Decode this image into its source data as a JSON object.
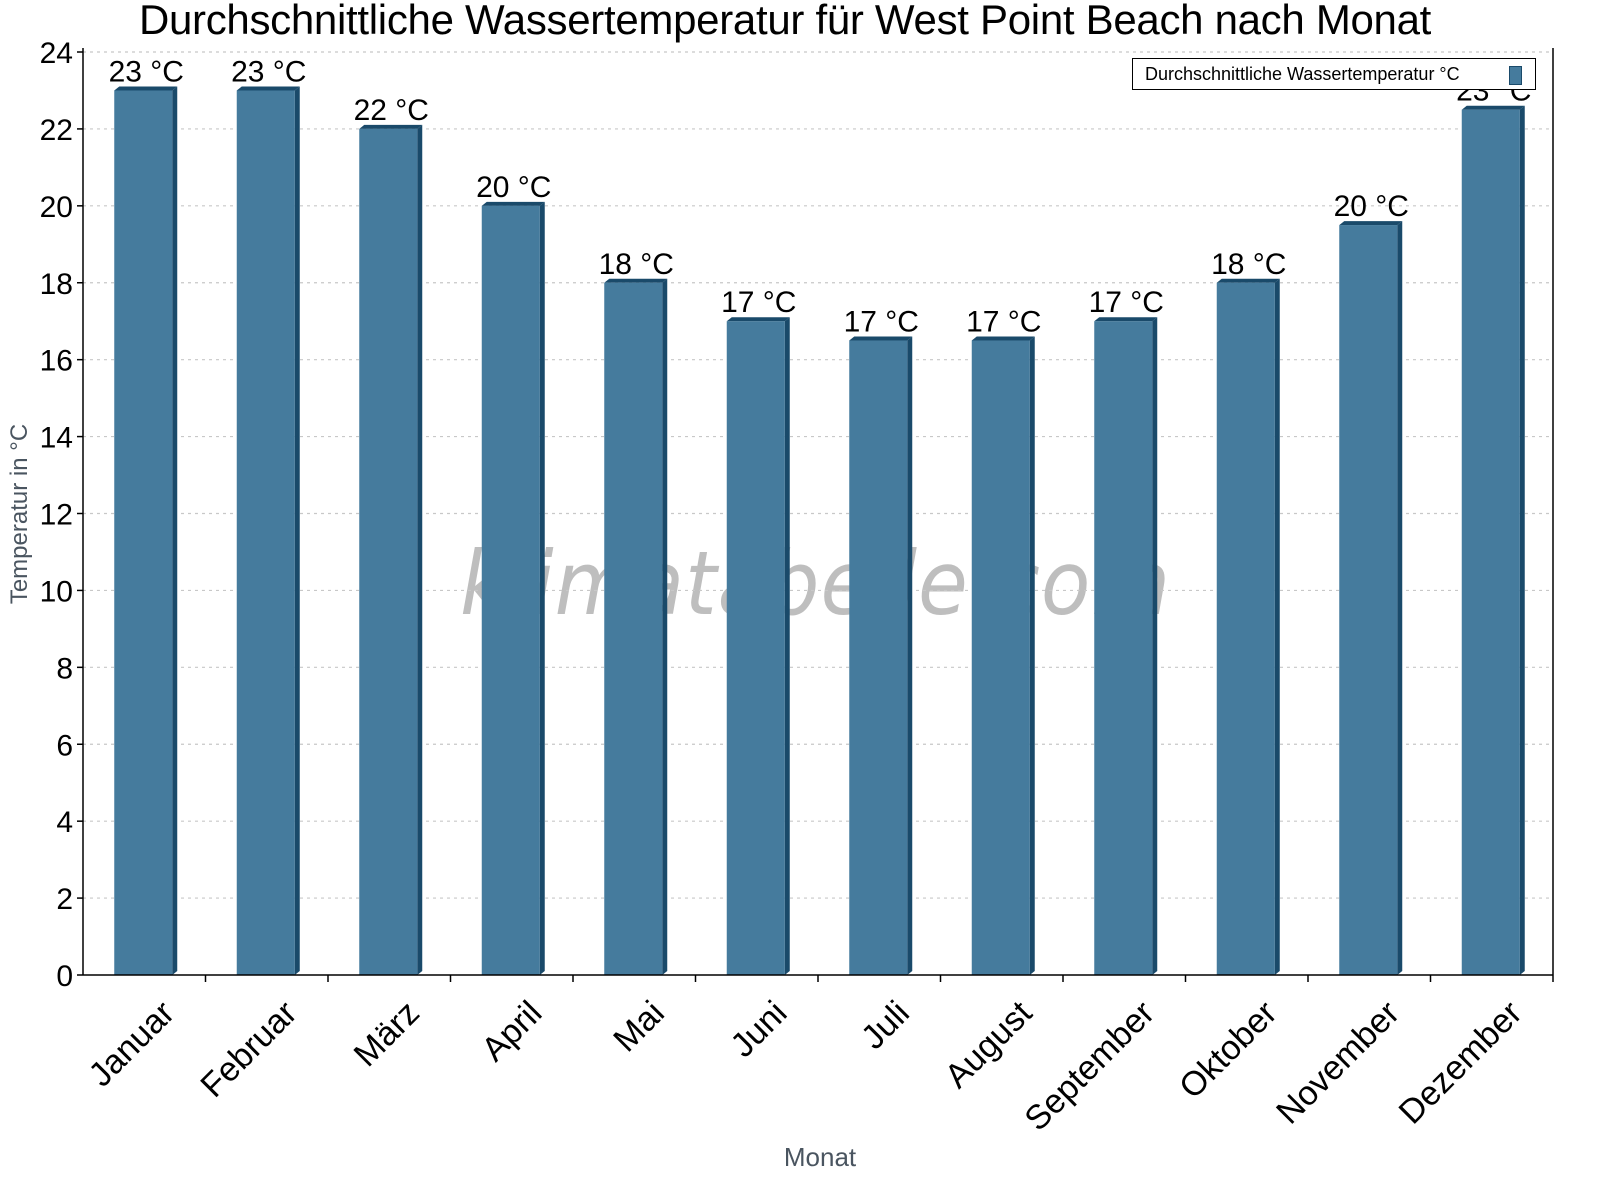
{
  "chart_data": {
    "type": "bar",
    "title": "Durchschnittliche Wassertemperatur für West Point Beach nach Monat",
    "xlabel": "Monat",
    "ylabel": "Temperatur in °C",
    "categories": [
      "Januar",
      "Februar",
      "März",
      "April",
      "Mai",
      "Juni",
      "Juli",
      "August",
      "September",
      "Oktober",
      "November",
      "Dezember"
    ],
    "series": [
      {
        "name": "Durchschnittliche Wassertemperatur °C",
        "color": "#457b9d",
        "side_color": "#1a4a6a",
        "values": [
          23,
          23,
          22,
          20,
          18,
          17,
          16.5,
          16.5,
          17,
          18,
          19.5,
          22.5
        ],
        "labels": [
          "23 °C",
          "23 °C",
          "22 °C",
          "20 °C",
          "18 °C",
          "17 °C",
          "17 °C",
          "17 °C",
          "17 °C",
          "18 °C",
          "20 °C",
          "23 °C"
        ]
      }
    ],
    "ylim": [
      0,
      24
    ],
    "yticks": [
      0,
      2,
      4,
      6,
      8,
      10,
      12,
      14,
      16,
      18,
      20,
      22,
      24
    ],
    "grid": true,
    "legend_position": "top-right",
    "watermark": "klimatabelle.com"
  }
}
